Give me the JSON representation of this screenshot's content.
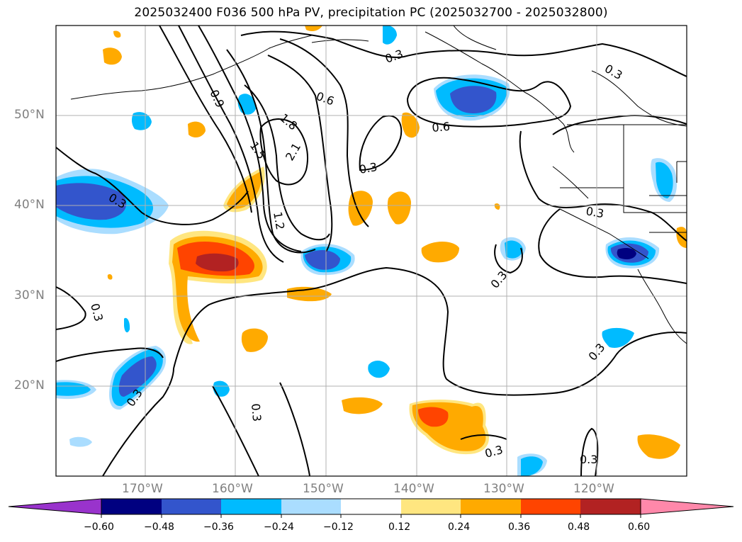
{
  "title": "2025032400 F036 500 hPa PV, precipitation PC (2025032700 - 2025032800)",
  "lat_labels": [
    "50°N",
    "40°N",
    "30°N",
    "20°N"
  ],
  "lon_labels": [
    "170°W",
    "160°W",
    "150°W",
    "140°W",
    "130°W",
    "120°W"
  ],
  "contour_labels": [
    "0.3",
    "0.6",
    "0.9",
    "1.2",
    "1.5",
    "1.8",
    "2.1"
  ],
  "colorbar": {
    "ticks": [
      "−0.60",
      "−0.48",
      "−0.36",
      "−0.24",
      "−0.12",
      "0.12",
      "0.24",
      "0.36",
      "0.48",
      "0.60"
    ],
    "colors": [
      "#9933cc",
      "#000080",
      "#3355cc",
      "#00bbff",
      "#aaddff",
      "#ffffff",
      "#ffe680",
      "#ffaa00",
      "#ff4400",
      "#b22222",
      "#ff88aa"
    ]
  }
}
